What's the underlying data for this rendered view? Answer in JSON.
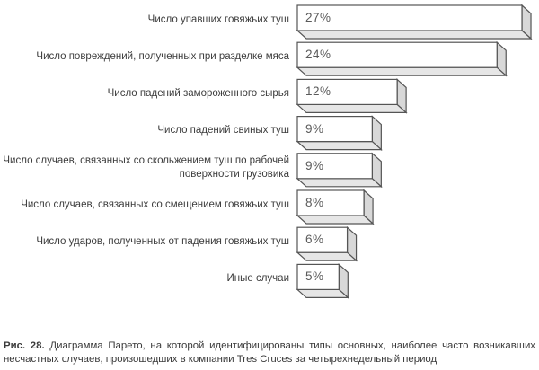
{
  "chart_data": {
    "type": "bar",
    "orientation": "horizontal",
    "style": "3d",
    "categories": [
      "Число упавших говяжьих туш",
      "Число повреждений, полученных при разделке мяса",
      "Число падений замороженного сырья",
      "Число падений свиных туш",
      "Число случаев, связанных со скольжением туш по рабочей\nповерхности грузовика",
      "Число случаев, связанных со смещением говяжьих туш",
      "Число ударов, полученных от падения говяжьих туш",
      "Иные случаи"
    ],
    "values": [
      27,
      24,
      12,
      9,
      9,
      8,
      6,
      5
    ],
    "value_labels": [
      "27%",
      "24%",
      "12%",
      "9%",
      "9%",
      "8%",
      "6%",
      "5%"
    ],
    "unit": "%",
    "bar_face_color": "#ffffff",
    "bar_edge_color": "#555555",
    "bar_side_color": "#d8d8d8",
    "bar_top_color": "#e6e6e6"
  },
  "caption": {
    "label": "Рис. 28.",
    "text": "Диаграмма Парето, на которой идентифицированы типы основных, наиболее часто возникавших несчастных случаев, произошедших в компании Tres Cruces за четырехнедельный период"
  }
}
